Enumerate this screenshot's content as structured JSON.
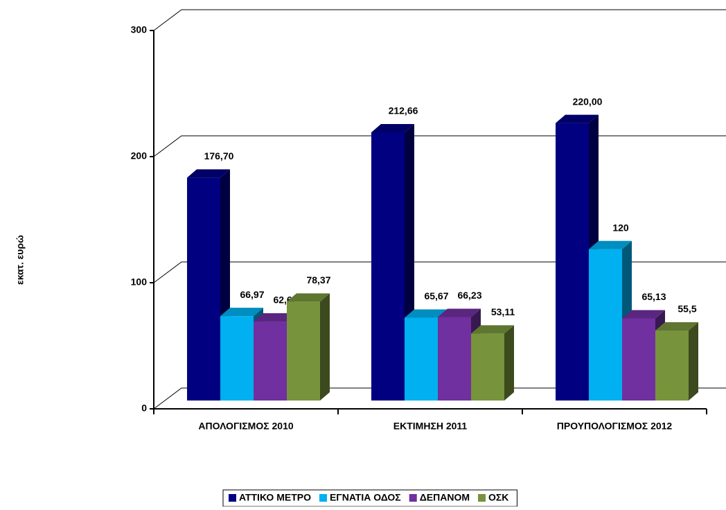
{
  "chart_data": {
    "type": "bar3d",
    "y_label": "εκατ. ευρώ",
    "categories": [
      "ΑΠΟΛΟΓΙΣΜΟΣ 2010",
      "ΕΚΤΙΜΗΣΗ 2011",
      "ΠΡΟΥΠΟΛΟΓΙΣΜΟΣ 2012"
    ],
    "series": [
      {
        "name": "ΑΤΤΙΚΟ ΜΕΤΡΟ",
        "color": "#000080",
        "values": [
          176.7,
          212.66,
          220.0
        ],
        "value_labels": [
          "176,70",
          "212,66",
          "220,00"
        ]
      },
      {
        "name": "ΕΓΝΑΤΙΑ ΟΔΟΣ",
        "color": "#00b0f0",
        "values": [
          66.97,
          65.67,
          120
        ],
        "value_labels": [
          "66,97",
          "65,67",
          "120"
        ]
      },
      {
        "name": "ΔΕΠΑΝΟΜ",
        "color": "#7030a0",
        "values": [
          62.62,
          66.23,
          65.13
        ],
        "value_labels": [
          "62,62",
          "66,23",
          "65,13"
        ]
      },
      {
        "name": "ΟΣΚ",
        "color": "#77933c",
        "values": [
          78.37,
          53.11,
          55.5
        ],
        "value_labels": [
          "78,37",
          "53,11",
          "55,5"
        ]
      }
    ],
    "ylim": [
      0,
      300
    ],
    "yticks": [
      0,
      100,
      200,
      300
    ],
    "grid": true,
    "legend": "bottom"
  }
}
